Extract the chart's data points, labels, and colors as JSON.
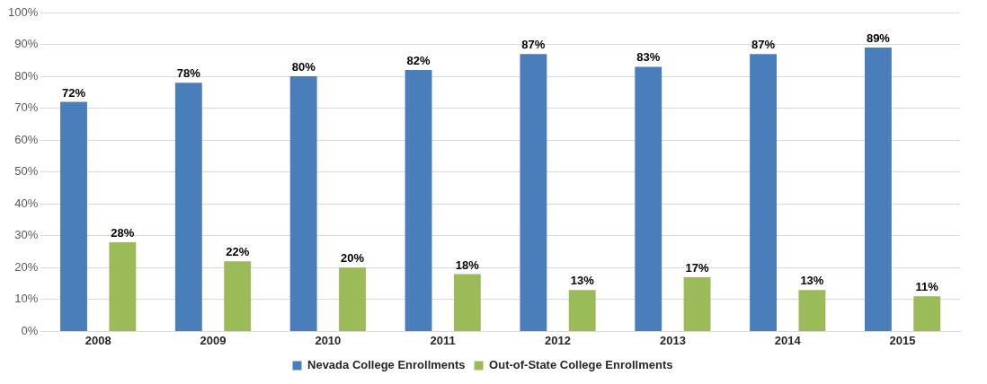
{
  "chart_data": {
    "type": "bar",
    "categories": [
      "2008",
      "2009",
      "2010",
      "2011",
      "2012",
      "2013",
      "2014",
      "2015"
    ],
    "series": [
      {
        "name": "Nevada College Enrollments",
        "color": "#4a7ebb",
        "values": [
          72,
          78,
          80,
          82,
          87,
          83,
          87,
          89
        ],
        "value_labels": [
          "72%",
          "78%",
          "80%",
          "82%",
          "87%",
          "83%",
          "87%",
          "89%"
        ]
      },
      {
        "name": "Out-of-State College Enrollments",
        "color": "#9bbb59",
        "values": [
          28,
          22,
          20,
          18,
          13,
          17,
          13,
          11
        ],
        "value_labels": [
          "28%",
          "22%",
          "20%",
          "18%",
          "13%",
          "17%",
          "13%",
          "11%"
        ]
      }
    ],
    "ylim": [
      0,
      100
    ],
    "yticks": [
      {
        "value": 0,
        "label": "0%"
      },
      {
        "value": 10,
        "label": "10%"
      },
      {
        "value": 20,
        "label": "20%"
      },
      {
        "value": 30,
        "label": "30%"
      },
      {
        "value": 40,
        "label": "40%"
      },
      {
        "value": 50,
        "label": "50%"
      },
      {
        "value": 60,
        "label": "60%"
      },
      {
        "value": 70,
        "label": "70%"
      },
      {
        "value": 80,
        "label": "80%"
      },
      {
        "value": 90,
        "label": "90%"
      },
      {
        "value": 100,
        "label": "100%"
      }
    ],
    "grid": "y",
    "legend": "bottom"
  }
}
